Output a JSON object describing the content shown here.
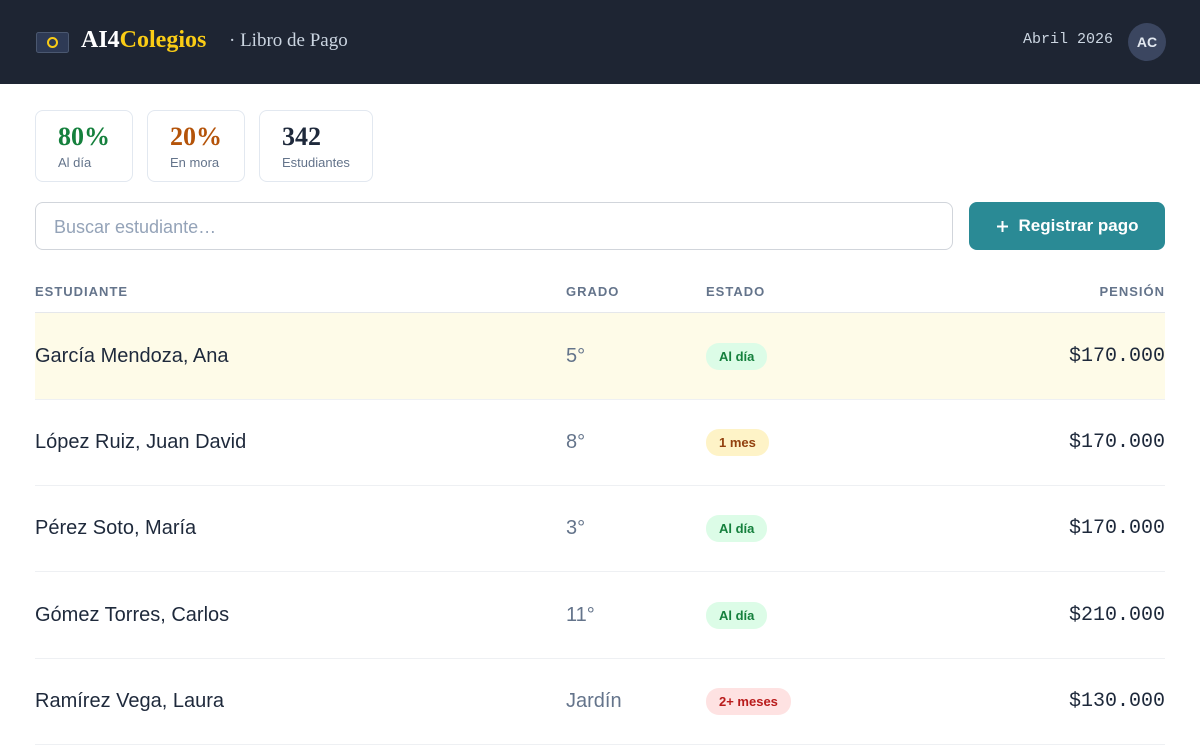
{
  "header": {
    "brand_a": "AI4",
    "brand_b": "Colegios",
    "subtitle": "· Libro de Pago",
    "date": "Abril 2026",
    "avatar": "AC"
  },
  "stats": [
    {
      "value": "80%",
      "label": "Al día",
      "color": "#15803d"
    },
    {
      "value": "20%",
      "label": "En mora",
      "color": "#b45309"
    },
    {
      "value": "342",
      "label": "Estudiantes",
      "color": "#1e293b"
    }
  ],
  "search": {
    "placeholder": "Buscar estudiante…"
  },
  "button": {
    "label": "Registrar pago"
  },
  "table": {
    "columns": [
      "ESTUDIANTE",
      "GRADO",
      "ESTADO",
      "PENSIÓN"
    ],
    "rows": [
      {
        "name": "García Mendoza, Ana",
        "grade": "5°",
        "status": "Al día",
        "status_color": "#15803d",
        "status_background": "#dcfce7",
        "amount": "$170.000"
      },
      {
        "name": "López Ruiz, Juan David",
        "grade": "8°",
        "status": "1 mes",
        "status_color": "#92400e",
        "status_background": "#fef3c7",
        "amount": "$170.000"
      },
      {
        "name": "Pérez Soto, María",
        "grade": "3°",
        "status": "Al día",
        "status_color": "#15803d",
        "status_background": "#dcfce7",
        "amount": "$170.000"
      },
      {
        "name": "Gómez Torres, Carlos",
        "grade": "11°",
        "status": "Al día",
        "status_color": "#15803d",
        "status_background": "#dcfce7",
        "amount": "$210.000"
      },
      {
        "name": "Ramírez Vega, Laura",
        "grade": "Jardín",
        "status": "2+ meses",
        "status_color": "#b91c1c",
        "status_background": "#fee2e2",
        "amount": "$130.000"
      }
    ]
  }
}
